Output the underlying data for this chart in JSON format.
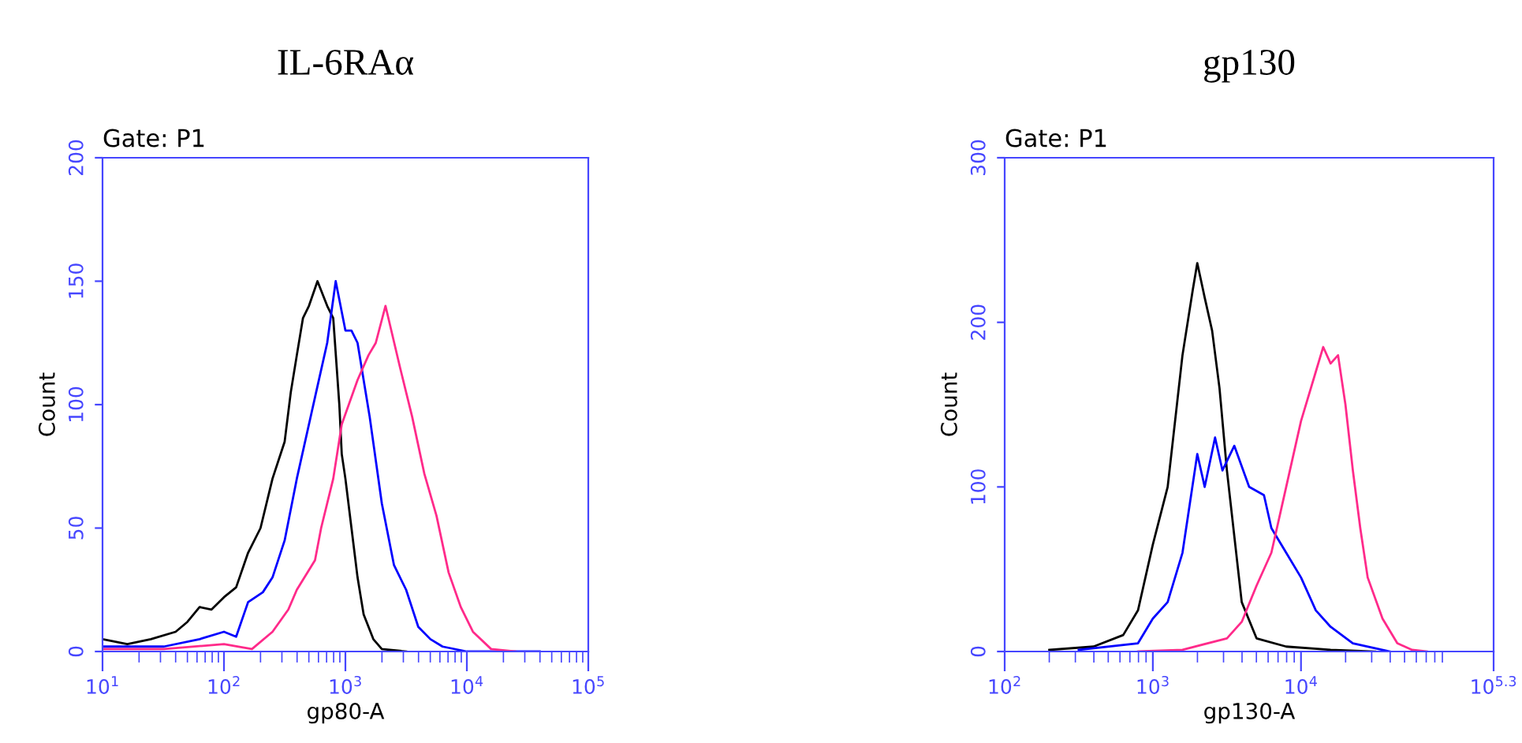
{
  "chart_data": [
    {
      "type": "line",
      "title": "IL-6RAα",
      "subtitle": "Gate: P1",
      "xlabel": "gp80-A",
      "ylabel": "Count",
      "log": "x",
      "grid": false,
      "marker": "none",
      "line_style": "solid",
      "xlim": [
        10,
        100000
      ],
      "xticks": [
        {
          "value": 10,
          "label": "10$^{1}$"
        },
        {
          "value": 100,
          "label": "10$^{2}$"
        },
        {
          "value": 1000,
          "label": "10$^{3}$"
        },
        {
          "value": 10000,
          "label": "10$^{4}$"
        },
        {
          "value": 100000,
          "label": "10$^{5}$"
        }
      ],
      "ylim": [
        0,
        200
      ],
      "yticks": [
        0,
        50,
        100,
        150,
        200
      ],
      "series": [
        {
          "color": "#000000",
          "x": [
            10,
            16,
            25,
            40,
            50,
            63,
            79,
            100,
            126,
            158,
            200,
            251,
            316,
            355,
            398,
            447,
            501,
            589,
            708,
            794,
            891,
            933,
            1000,
            1122,
            1259,
            1413,
            1698,
            1995,
            3162
          ],
          "values": [
            5,
            3,
            5,
            8,
            12,
            18,
            17,
            22,
            26,
            40,
            50,
            70,
            85,
            105,
            120,
            135,
            140,
            150,
            140,
            135,
            100,
            80,
            70,
            50,
            30,
            15,
            5,
            1,
            0
          ]
        },
        {
          "color": "#0000ff",
          "x": [
            10,
            32,
            63,
            100,
            126,
            158,
            209,
            251,
            316,
            398,
            562,
            708,
            832,
            1000,
            1122,
            1259,
            1585,
            1995,
            2512,
            3162,
            3981,
            5012,
            6310,
            10000,
            39811
          ],
          "values": [
            2,
            2,
            5,
            8,
            6,
            20,
            24,
            30,
            45,
            70,
            103,
            125,
            150,
            130,
            130,
            125,
            95,
            60,
            35,
            25,
            10,
            5,
            2,
            0,
            0
          ]
        },
        {
          "color": "#ff2a8a",
          "x": [
            10,
            32,
            100,
            170,
            251,
            339,
            398,
            562,
            631,
            794,
            933,
            1259,
            1549,
            1778,
            2138,
            2818,
            3548,
            4467,
            5623,
            7079,
            8913,
            11220,
            15849,
            25119
          ],
          "values": [
            1,
            1,
            3,
            1,
            8,
            17,
            25,
            37,
            50,
            70,
            92,
            110,
            120,
            125,
            140,
            115,
            95,
            72,
            55,
            32,
            18,
            8,
            1,
            0
          ]
        }
      ]
    },
    {
      "type": "line",
      "title": "gp130",
      "subtitle": "Gate: P1",
      "xlabel": "gp130-A",
      "ylabel": "Count",
      "log": "x",
      "grid": false,
      "marker": "none",
      "line_style": "solid",
      "xlim": [
        100,
        199526
      ],
      "xticks": [
        {
          "value": 100,
          "label": "10$^{2}$"
        },
        {
          "value": 1000,
          "label": "10$^{3}$"
        },
        {
          "value": 10000,
          "label": "10$^{4}$"
        },
        {
          "value": 199526,
          "label": "10$^{5.3}$"
        }
      ],
      "ylim": [
        0,
        300
      ],
      "yticks": [
        0,
        100,
        200,
        300
      ],
      "series": [
        {
          "color": "#000000",
          "x": [
            200,
            398,
            631,
            794,
            1000,
            1259,
            1585,
            1862,
            1995,
            2239,
            2512,
            2818,
            3162,
            3981,
            5012,
            7943,
            15849,
            31623
          ],
          "values": [
            1,
            3,
            10,
            25,
            65,
            100,
            180,
            220,
            236,
            215,
            195,
            160,
            110,
            30,
            8,
            3,
            1,
            0
          ]
        },
        {
          "color": "#0000ff",
          "x": [
            316,
            794,
            1000,
            1259,
            1585,
            1778,
            1995,
            2239,
            2630,
            2951,
            3548,
            4467,
            5623,
            6310,
            7943,
            10000,
            12589,
            15849,
            22387,
            31623,
            39811
          ],
          "values": [
            1,
            5,
            20,
            30,
            60,
            90,
            120,
            100,
            130,
            110,
            125,
            100,
            95,
            75,
            60,
            45,
            25,
            15,
            5,
            2,
            0
          ]
        },
        {
          "color": "#ff2a8a",
          "x": [
            794,
            1585,
            3162,
            3981,
            5012,
            6310,
            7943,
            10000,
            12589,
            14125,
            15849,
            17783,
            19953,
            22387,
            25119,
            28184,
            35481,
            44668,
            56234,
            70795
          ],
          "values": [
            0,
            1,
            8,
            18,
            40,
            60,
            100,
            140,
            170,
            185,
            175,
            180,
            150,
            110,
            75,
            45,
            20,
            5,
            1,
            0
          ]
        }
      ]
    }
  ]
}
